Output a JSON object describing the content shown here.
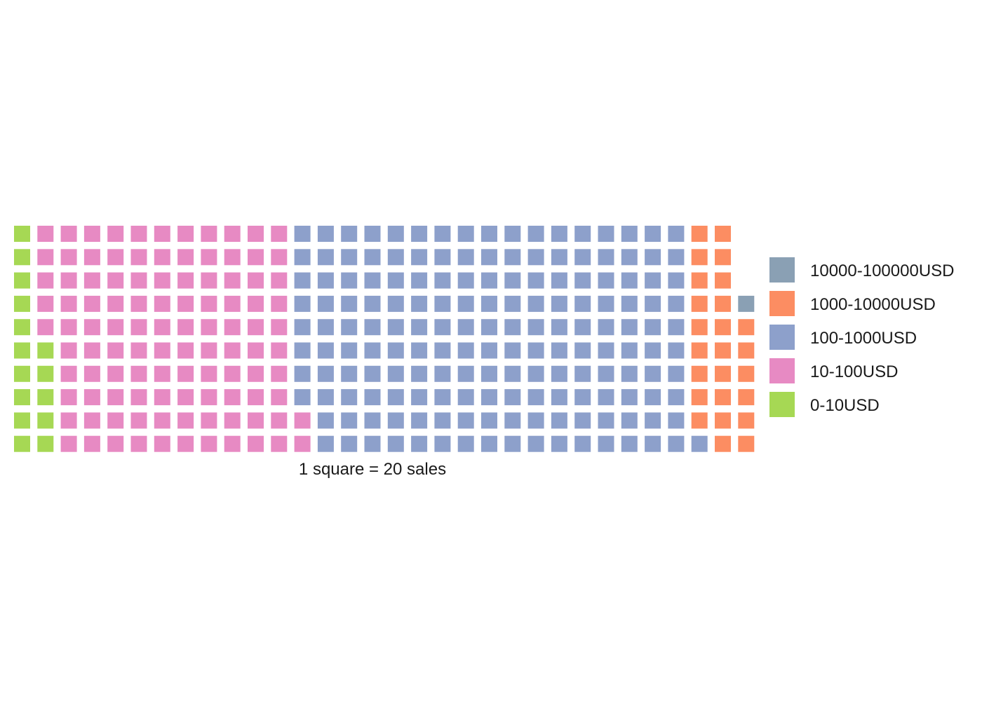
{
  "chart_data": {
    "type": "waffle",
    "unit_text": "1 square = 20 sales",
    "squares_per_column": 10,
    "categories": [
      {
        "name": "0-10USD",
        "squares": 15,
        "color": "#a6d854"
      },
      {
        "name": "10-100USD",
        "squares": 107,
        "color": "#e78ac3"
      },
      {
        "name": "100-1000USD",
        "squares": 169,
        "color": "#8da0cb"
      },
      {
        "name": "1000-10000USD",
        "squares": 25,
        "color": "#fc8d62"
      },
      {
        "name": "10000-100000USD",
        "squares": 1,
        "color": "#8aa0b4"
      }
    ],
    "legend": {
      "position": "right",
      "order": [
        "10000-100000USD",
        "1000-10000USD",
        "100-1000USD",
        "10-100USD",
        "0-10USD"
      ]
    },
    "grid": false,
    "axes": false
  }
}
